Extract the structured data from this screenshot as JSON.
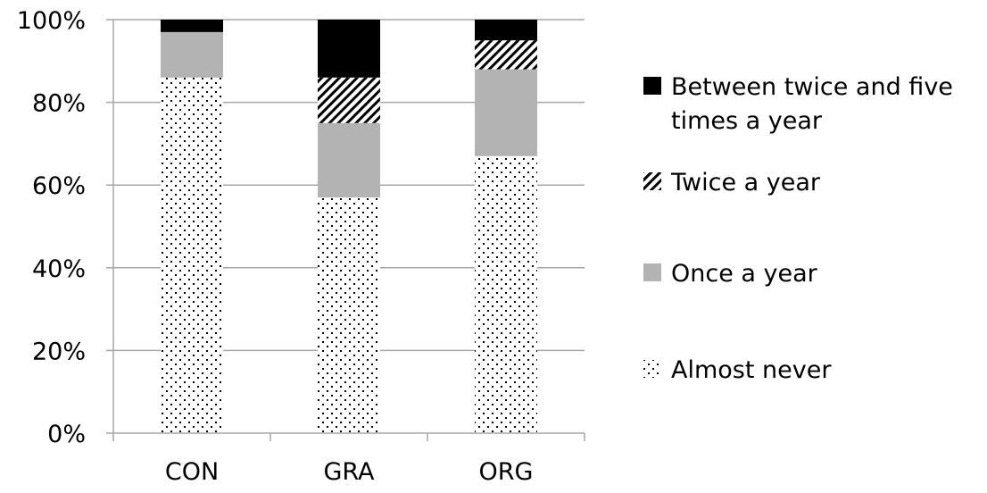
{
  "chart_data": {
    "type": "bar",
    "stacked": true,
    "categories": [
      "CON",
      "GRA",
      "ORG"
    ],
    "series": [
      {
        "name": "Almost never",
        "values": [
          86,
          57,
          67
        ],
        "fill": "dots"
      },
      {
        "name": "Once a year",
        "values": [
          11,
          18,
          21
        ],
        "fill": "#b3b3b3"
      },
      {
        "name": "Twice a year",
        "values": [
          0,
          11,
          7
        ],
        "fill": "hatch"
      },
      {
        "name": "Between twice and five times a year",
        "values": [
          3,
          14,
          5
        ],
        "fill": "#000000"
      }
    ],
    "legend_entries": [
      {
        "series": 3,
        "lines": [
          "Between twice and five",
          "times a year"
        ]
      },
      {
        "series": 2,
        "lines": [
          "Twice a year"
        ]
      },
      {
        "series": 1,
        "lines": [
          "Once a year"
        ]
      },
      {
        "series": 0,
        "lines": [
          "Almost never"
        ]
      }
    ],
    "ylim": [
      0,
      100
    ],
    "yticks": [
      "0%",
      "20%",
      "40%",
      "60%",
      "80%",
      "100%"
    ],
    "ytick_values": [
      0,
      20,
      40,
      60,
      80,
      100
    ],
    "grid": true,
    "legend_position": "right",
    "colors": {
      "axis": "#a6a6a6",
      "grid": "#a6a6a6",
      "dark": "#000000",
      "gray": "#b3b3b3",
      "background": "#ffffff"
    }
  }
}
